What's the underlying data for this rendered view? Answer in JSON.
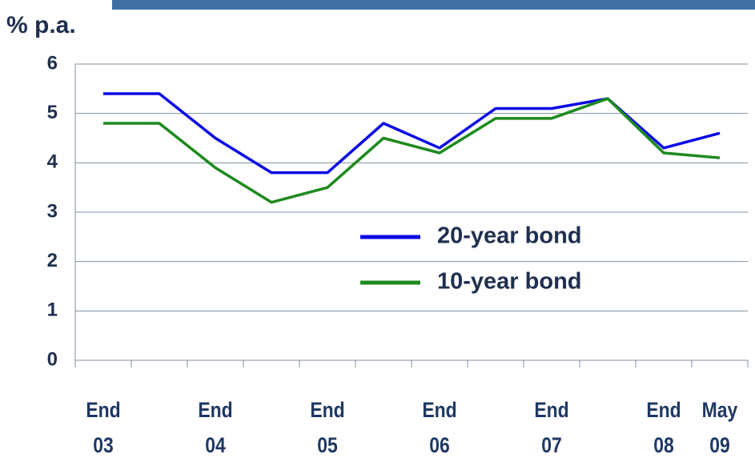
{
  "chart_data": {
    "type": "line",
    "y_label": "% p.a.",
    "categories": [
      "End\n03",
      null,
      "End\n04",
      null,
      "End\n05",
      null,
      "End\n06",
      null,
      "End\n07",
      null,
      "End\n08",
      "May\n09"
    ],
    "series": [
      {
        "name": "20-year bond",
        "color": "#0a0ae6",
        "values": [
          5.4,
          5.4,
          4.5,
          3.8,
          3.8,
          4.8,
          4.3,
          5.1,
          5.1,
          5.3,
          4.3,
          4.6
        ]
      },
      {
        "name": "10-year bond",
        "color": "#1e8a1e",
        "values": [
          4.8,
          4.8,
          3.9,
          3.2,
          3.5,
          4.5,
          4.2,
          4.9,
          4.9,
          5.3,
          4.2,
          4.1
        ]
      }
    ],
    "ylim": [
      0,
      6
    ],
    "yticks": [
      0,
      1,
      2,
      3,
      4,
      5,
      6
    ],
    "grid": true,
    "legend_position": "center-right"
  }
}
